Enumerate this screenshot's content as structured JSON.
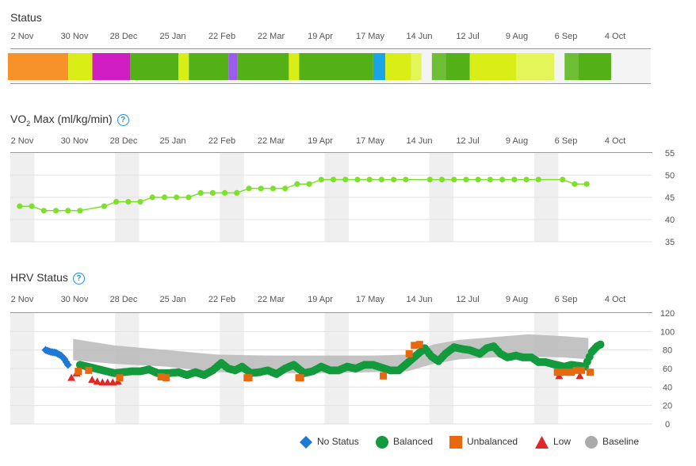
{
  "sections": {
    "status_title": "Status",
    "vo2_title_prefix": "VO",
    "vo2_title_sub": "2",
    "vo2_title_suffix": " Max (ml/kg/min)",
    "hrv_title": "HRV Status",
    "help_glyph": "?"
  },
  "legend": {
    "no_status": "No Status",
    "balanced": "Balanced",
    "unbalanced": "Unbalanced",
    "low": "Low",
    "baseline": "Baseline"
  },
  "colors": {
    "no_status": "#1e78d6",
    "balanced": "#129a3c",
    "unbalanced": "#e8680f",
    "low": "#e02828",
    "baseline": "#aaaaaa",
    "vo2_line": "#7ee02a",
    "help": "#1a8fe0"
  },
  "chart_data": [
    {
      "type": "bar",
      "title": "Status",
      "x_tick_labels": [
        "2 Nov",
        "30 Nov",
        "28 Dec",
        "25 Jan",
        "22 Feb",
        "22 Mar",
        "19 Apr",
        "17 May",
        "14 Jun",
        "12 Jul",
        "9 Aug",
        "6 Sep",
        "4 Oct"
      ],
      "x_range_days": [
        0,
        357
      ],
      "segments": [
        {
          "start": 0,
          "end": 35,
          "color": "#f7922a"
        },
        {
          "start": 35,
          "end": 49,
          "color": "#d9ee16"
        },
        {
          "start": 49,
          "end": 71,
          "color": "#d11ec2"
        },
        {
          "start": 71,
          "end": 99,
          "color": "#53b016"
        },
        {
          "start": 99,
          "end": 105,
          "color": "#d9ee16"
        },
        {
          "start": 105,
          "end": 128,
          "color": "#53b016"
        },
        {
          "start": 128,
          "end": 133,
          "color": "#9b5cf0"
        },
        {
          "start": 133,
          "end": 163,
          "color": "#53b016"
        },
        {
          "start": 163,
          "end": 169,
          "color": "#d9ee16"
        },
        {
          "start": 169,
          "end": 212,
          "color": "#53b016"
        },
        {
          "start": 212,
          "end": 219,
          "color": "#1aa4e8"
        },
        {
          "start": 219,
          "end": 234,
          "color": "#d9ee16"
        },
        {
          "start": 234,
          "end": 240,
          "color": "#e4f55a"
        },
        {
          "start": 246,
          "end": 254,
          "color": "#6ebf36"
        },
        {
          "start": 254,
          "end": 268,
          "color": "#53b016"
        },
        {
          "start": 268,
          "end": 295,
          "color": "#d9ee16"
        },
        {
          "start": 295,
          "end": 317,
          "color": "#e4f55a"
        },
        {
          "start": 323,
          "end": 331,
          "color": "#6ebf36"
        },
        {
          "start": 331,
          "end": 350,
          "color": "#53b016"
        }
      ]
    },
    {
      "type": "line",
      "title": "VO2 Max (ml/kg/min)",
      "x_tick_labels": [
        "2 Nov",
        "30 Nov",
        "28 Dec",
        "25 Jan",
        "22 Feb",
        "22 Mar",
        "19 Apr",
        "17 May",
        "14 Jun",
        "12 Jul",
        "9 Aug",
        "6 Sep",
        "4 Oct"
      ],
      "y_tick_labels": [
        "55",
        "50",
        "45",
        "40",
        "35"
      ],
      "ylim": [
        35,
        55
      ],
      "x_range_days": [
        0,
        357
      ],
      "points": [
        [
          5,
          43
        ],
        [
          12,
          43
        ],
        [
          19,
          42
        ],
        [
          26,
          42
        ],
        [
          33,
          42
        ],
        [
          40,
          42
        ],
        [
          54,
          43
        ],
        [
          61,
          44
        ],
        [
          68,
          44
        ],
        [
          75,
          44
        ],
        [
          82,
          45
        ],
        [
          89,
          45
        ],
        [
          96,
          45
        ],
        [
          103,
          45
        ],
        [
          110,
          46
        ],
        [
          117,
          46
        ],
        [
          124,
          46
        ],
        [
          131,
          46
        ],
        [
          138,
          47
        ],
        [
          145,
          47
        ],
        [
          152,
          47
        ],
        [
          159,
          47
        ],
        [
          166,
          48
        ],
        [
          173,
          48
        ],
        [
          180,
          49
        ],
        [
          187,
          49
        ],
        [
          194,
          49
        ],
        [
          201,
          49
        ],
        [
          208,
          49
        ],
        [
          215,
          49
        ],
        [
          222,
          49
        ],
        [
          229,
          49
        ],
        [
          243,
          49
        ],
        [
          250,
          49
        ],
        [
          257,
          49
        ],
        [
          264,
          49
        ],
        [
          271,
          49
        ],
        [
          278,
          49
        ],
        [
          285,
          49
        ],
        [
          292,
          49
        ],
        [
          299,
          49
        ],
        [
          306,
          49
        ],
        [
          320,
          49
        ],
        [
          327,
          48
        ],
        [
          334,
          48
        ]
      ]
    },
    {
      "type": "scatter",
      "title": "HRV Status",
      "x_tick_labels": [
        "2 Nov",
        "30 Nov",
        "28 Dec",
        "25 Jan",
        "22 Feb",
        "22 Mar",
        "19 Apr",
        "17 May",
        "14 Jun",
        "12 Jul",
        "9 Aug",
        "6 Sep",
        "4 Oct"
      ],
      "y_tick_labels": [
        "120",
        "100",
        "80",
        "60",
        "40",
        "20",
        "0"
      ],
      "ylim": [
        0,
        120
      ],
      "x_range_days": [
        0,
        357
      ],
      "baseline_band": [
        [
          36,
          69,
          92
        ],
        [
          60,
          65,
          85
        ],
        [
          90,
          62,
          80
        ],
        [
          120,
          56,
          75
        ],
        [
          150,
          55,
          74
        ],
        [
          180,
          55,
          74
        ],
        [
          210,
          56,
          74
        ],
        [
          230,
          57,
          75
        ],
        [
          245,
          65,
          86
        ],
        [
          260,
          70,
          91
        ],
        [
          280,
          72,
          94
        ],
        [
          300,
          73,
          97
        ],
        [
          320,
          72,
          95
        ],
        [
          335,
          70,
          93
        ]
      ],
      "series": [
        {
          "name": "No Status",
          "marker": "diamond",
          "color": "#1e78d6",
          "points": [
            [
              20,
              80
            ],
            [
              23,
              78
            ],
            [
              26,
              77
            ],
            [
              29,
              74
            ],
            [
              31,
              70
            ],
            [
              33,
              64
            ]
          ]
        },
        {
          "name": "Low",
          "marker": "triangle",
          "color": "#e02828",
          "points": [
            [
              35,
              50
            ],
            [
              38,
              55
            ],
            [
              47,
              48
            ],
            [
              50,
              46
            ],
            [
              53,
              45
            ],
            [
              56,
              45
            ],
            [
              59,
              45
            ],
            [
              62,
              46
            ],
            [
              318,
              52
            ],
            [
              330,
              52
            ]
          ]
        },
        {
          "name": "Unbalanced",
          "marker": "square",
          "color": "#e8680f",
          "points": [
            [
              39,
              57
            ],
            [
              45,
              58
            ],
            [
              63,
              50
            ],
            [
              87,
              51
            ],
            [
              90,
              50
            ],
            [
              137,
              50
            ],
            [
              138,
              50
            ],
            [
              167,
              50
            ],
            [
              168,
              50
            ],
            [
              216,
              52
            ],
            [
              231,
              76
            ],
            [
              234,
              85
            ],
            [
              237,
              86
            ],
            [
              317,
              56
            ],
            [
              321,
              56
            ],
            [
              325,
              56
            ],
            [
              328,
              58
            ],
            [
              331,
              58
            ],
            [
              336,
              56
            ]
          ]
        },
        {
          "name": "Balanced",
          "marker": "circle",
          "color": "#129a3c",
          "points": [
            [
              40,
              64
            ],
            [
              60,
              55
            ],
            [
              65,
              56
            ],
            [
              70,
              57
            ],
            [
              75,
              57
            ],
            [
              80,
              59
            ],
            [
              85,
              55
            ],
            [
              92,
              55
            ],
            [
              97,
              56
            ],
            [
              102,
              53
            ],
            [
              107,
              56
            ],
            [
              112,
              53
            ],
            [
              117,
              58
            ],
            [
              122,
              66
            ],
            [
              126,
              60
            ],
            [
              130,
              58
            ],
            [
              134,
              62
            ],
            [
              139,
              55
            ],
            [
              144,
              56
            ],
            [
              149,
              58
            ],
            [
              154,
              54
            ],
            [
              159,
              60
            ],
            [
              164,
              64
            ],
            [
              170,
              55
            ],
            [
              175,
              57
            ],
            [
              180,
              62
            ],
            [
              185,
              58
            ],
            [
              190,
              58
            ],
            [
              195,
              62
            ],
            [
              200,
              60
            ],
            [
              205,
              64
            ],
            [
              210,
              64
            ],
            [
              220,
              58
            ],
            [
              225,
              58
            ],
            [
              240,
              82
            ],
            [
              244,
              73
            ],
            [
              248,
              68
            ],
            [
              252,
              76
            ],
            [
              257,
              83
            ],
            [
              262,
              81
            ],
            [
              266,
              80
            ],
            [
              272,
              76
            ],
            [
              276,
              82
            ],
            [
              280,
              84
            ],
            [
              284,
              76
            ],
            [
              288,
              72
            ],
            [
              293,
              74
            ],
            [
              297,
              72
            ],
            [
              302,
              72
            ],
            [
              306,
              67
            ],
            [
              310,
              67
            ],
            [
              314,
              65
            ],
            [
              321,
              62
            ],
            [
              325,
              64
            ],
            [
              333,
              62
            ],
            [
              337,
              78
            ],
            [
              340,
              84
            ],
            [
              342,
              86
            ]
          ]
        }
      ]
    }
  ]
}
